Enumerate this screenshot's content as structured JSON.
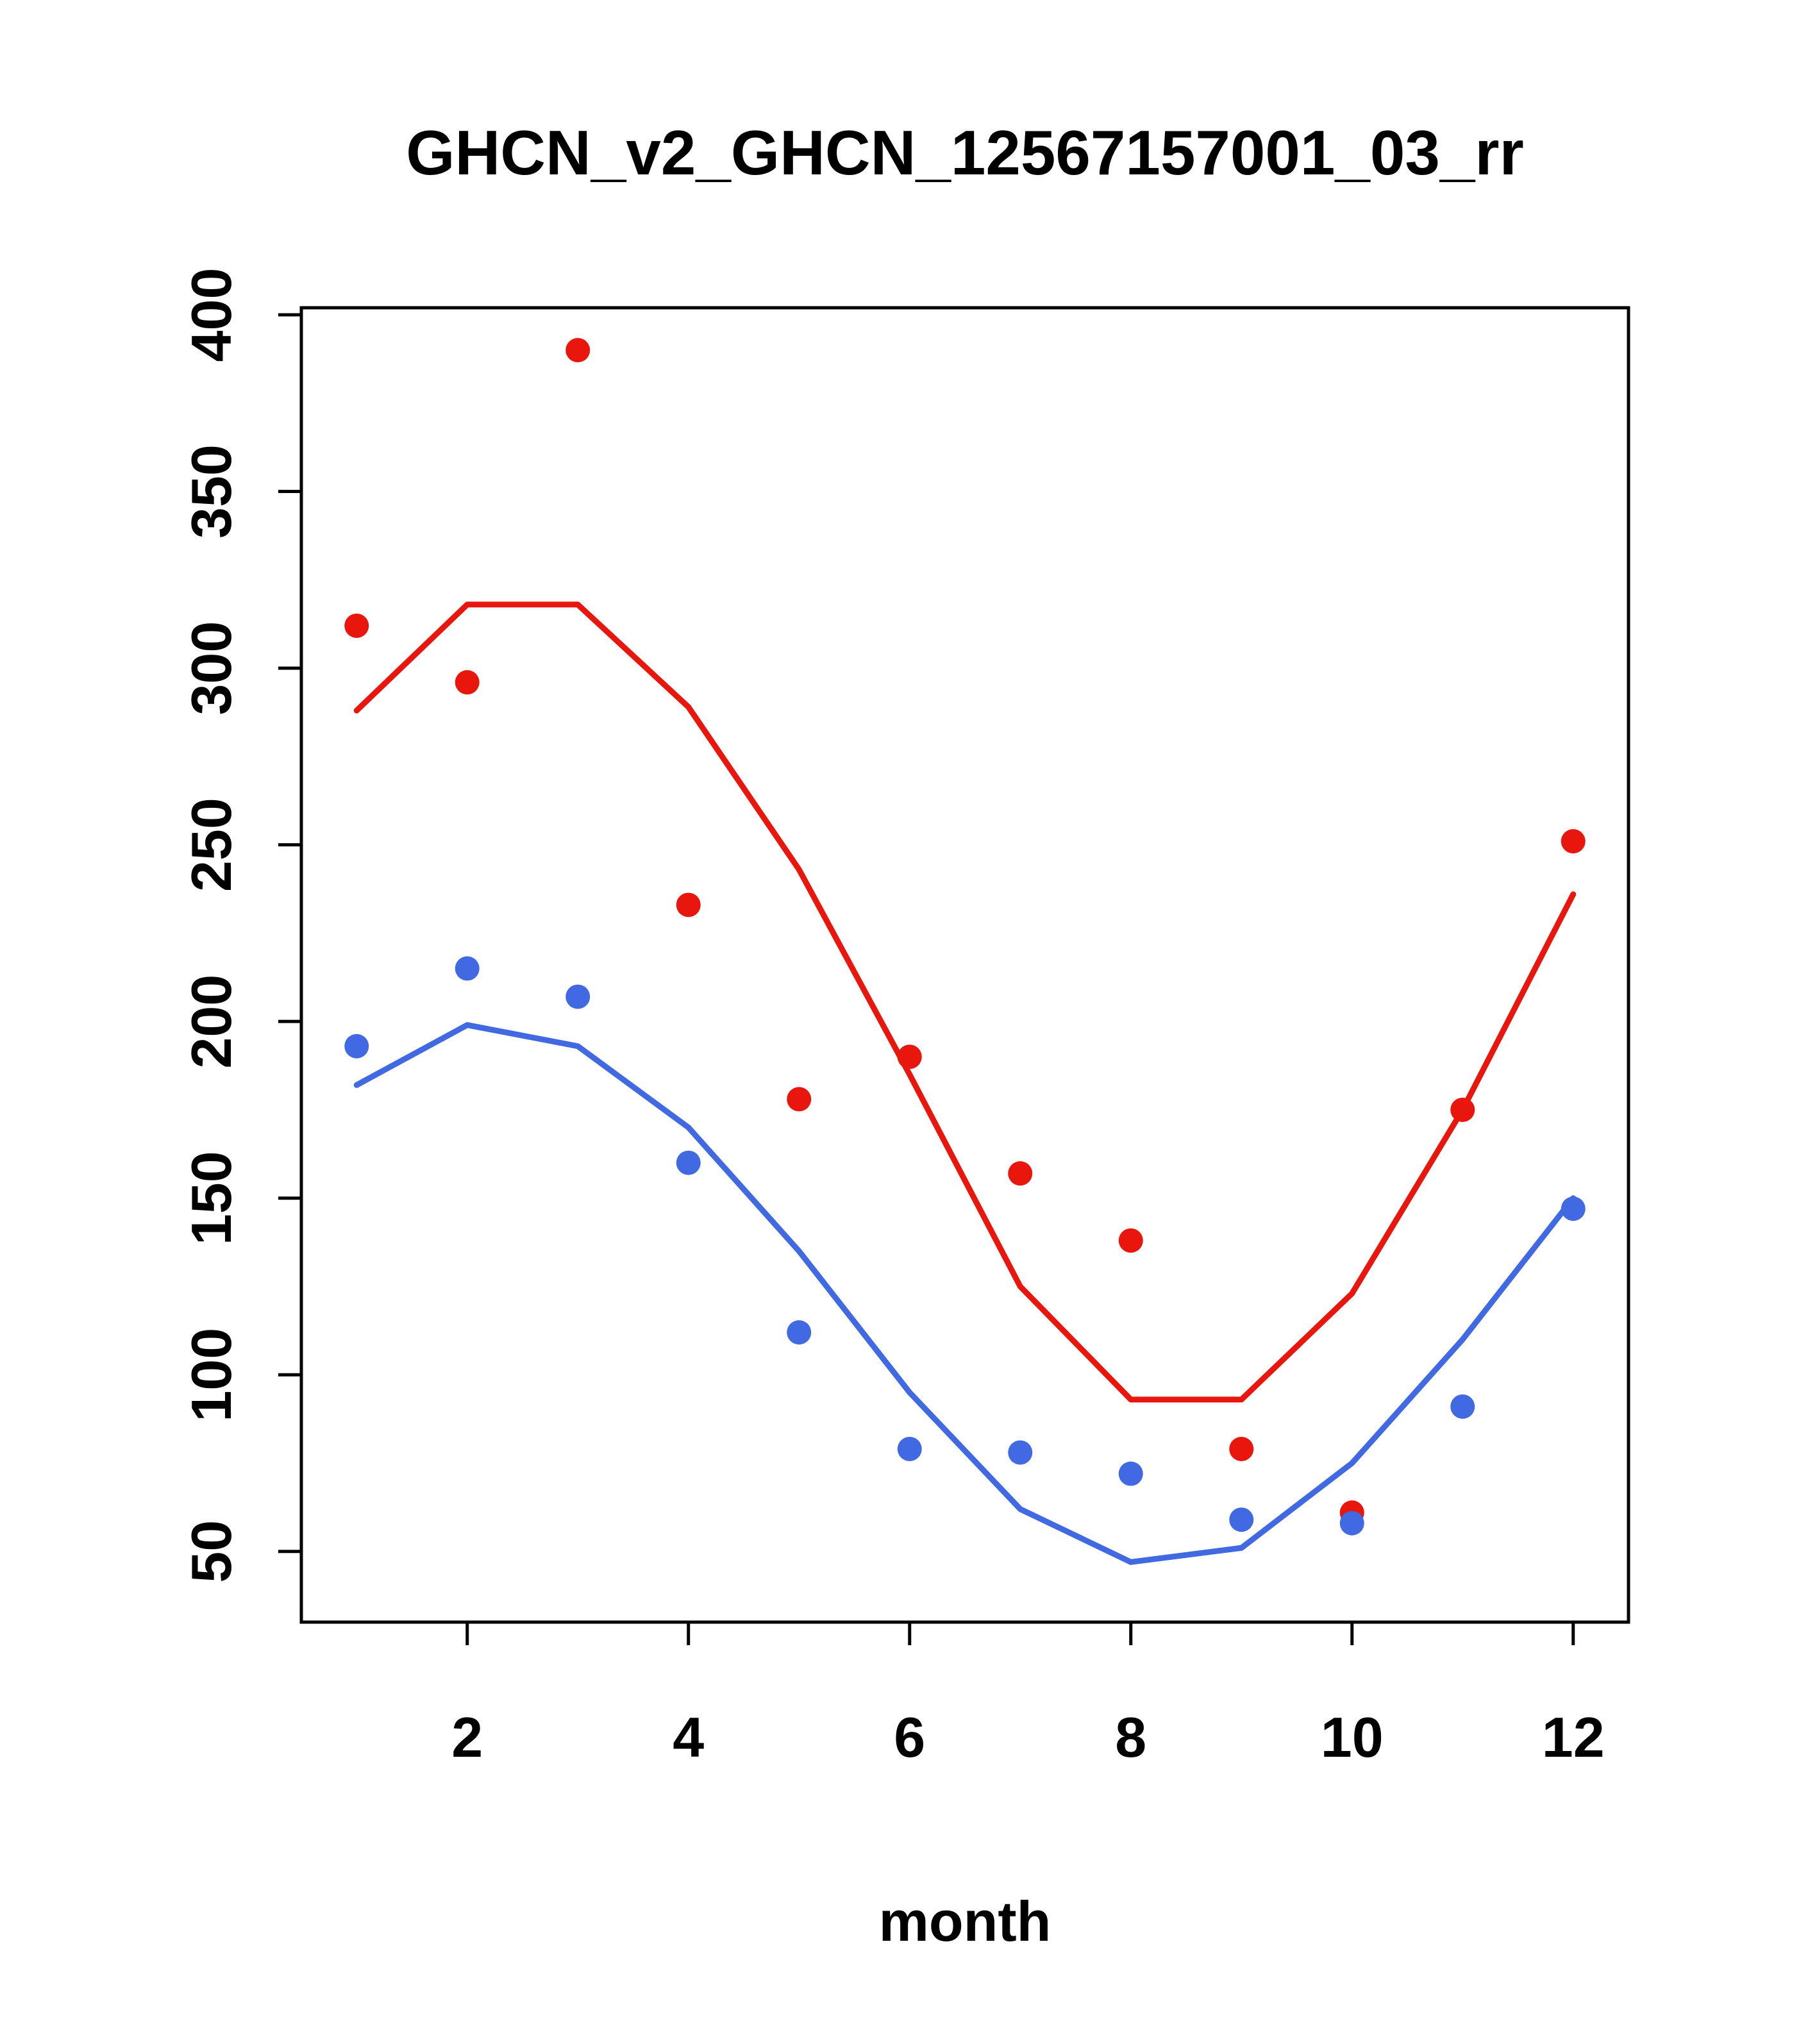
{
  "chart_data": {
    "type": "line",
    "title": "GHCN_v2_GHCN_12567157001_03_rr",
    "xlabel": "month",
    "ylabel": "",
    "x": [
      1,
      2,
      3,
      4,
      5,
      6,
      7,
      8,
      9,
      10,
      11,
      12
    ],
    "x_ticks": [
      2,
      4,
      6,
      8,
      10,
      12
    ],
    "y_ticks": [
      50,
      100,
      150,
      200,
      250,
      300,
      350,
      400
    ],
    "xlim": [
      0.5,
      12.5
    ],
    "ylim": [
      30,
      402
    ],
    "grid": false,
    "legend": "none",
    "colors": {
      "red_series": "#e8160c",
      "blue_series": "#4169e1",
      "axis": "#000000"
    },
    "series": [
      {
        "name": "red-points",
        "style": "scatter",
        "color": "#e8160c",
        "values": [
          312,
          296,
          390,
          233,
          178,
          190,
          157,
          138,
          79,
          61,
          175,
          251
        ]
      },
      {
        "name": "red-line",
        "style": "line",
        "color": "#e8160c",
        "values": [
          288,
          318,
          318,
          289,
          243,
          185,
          125,
          93,
          93,
          123,
          175,
          236
        ]
      },
      {
        "name": "blue-points",
        "style": "scatter",
        "color": "#4169e1",
        "values": [
          193,
          215,
          207,
          160,
          112,
          79,
          78,
          72,
          59,
          58,
          91,
          147
        ]
      },
      {
        "name": "blue-line",
        "style": "line",
        "color": "#4169e1",
        "values": [
          182,
          199,
          193,
          170,
          135,
          95,
          62,
          47,
          51,
          75,
          110,
          150
        ]
      }
    ]
  }
}
